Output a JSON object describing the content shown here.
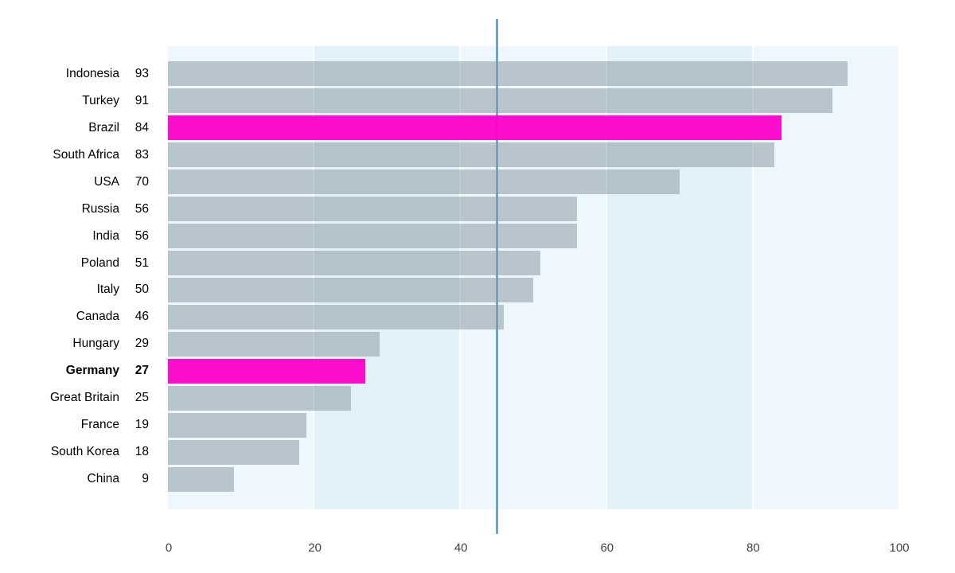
{
  "chart_data": {
    "type": "bar",
    "orientation": "horizontal",
    "title": "",
    "categories": [
      "Indonesia",
      "Turkey",
      "Brazil",
      "South Africa",
      "USA",
      "Russia",
      "India",
      "Poland",
      "Italy",
      "Canada",
      "Hungary",
      "Germany",
      "Great Britain",
      "France",
      "South Korea",
      "China"
    ],
    "values": [
      93,
      91,
      84,
      83,
      70,
      56,
      56,
      51,
      50,
      46,
      29,
      27,
      25,
      19,
      18,
      9
    ],
    "highlighted_categories": [
      "Brazil",
      "Germany"
    ],
    "bold_categories": [
      "Germany"
    ],
    "xlim": [
      0,
      100
    ],
    "x_ticks": [
      "0",
      "20",
      "40",
      "60",
      "80",
      "100"
    ],
    "x_tick_values": [
      0,
      20,
      40,
      60,
      80,
      100
    ],
    "reference_line_x": 45,
    "legend": "none",
    "grid": "vertical-bands-every-20-units",
    "background_bands": [
      "#edf7fd",
      "#e3f1fa",
      "#edf7fd",
      "#e3f1fa",
      "#edf7fd"
    ],
    "colors": {
      "bar": "rgba(141,156,166,0.55)",
      "bar_solid_appearance": "#b9c4ca",
      "highlight": "rgba(255,0,204,0.95)",
      "highlight_solid_appearance": "#ff00cc",
      "reference_line": "#6da4c9",
      "band_light": "#edf7fd",
      "band_dark": "#e3f1fa",
      "label_text": "#000000",
      "tick_text": "#404040",
      "background": "#ffffff"
    }
  }
}
